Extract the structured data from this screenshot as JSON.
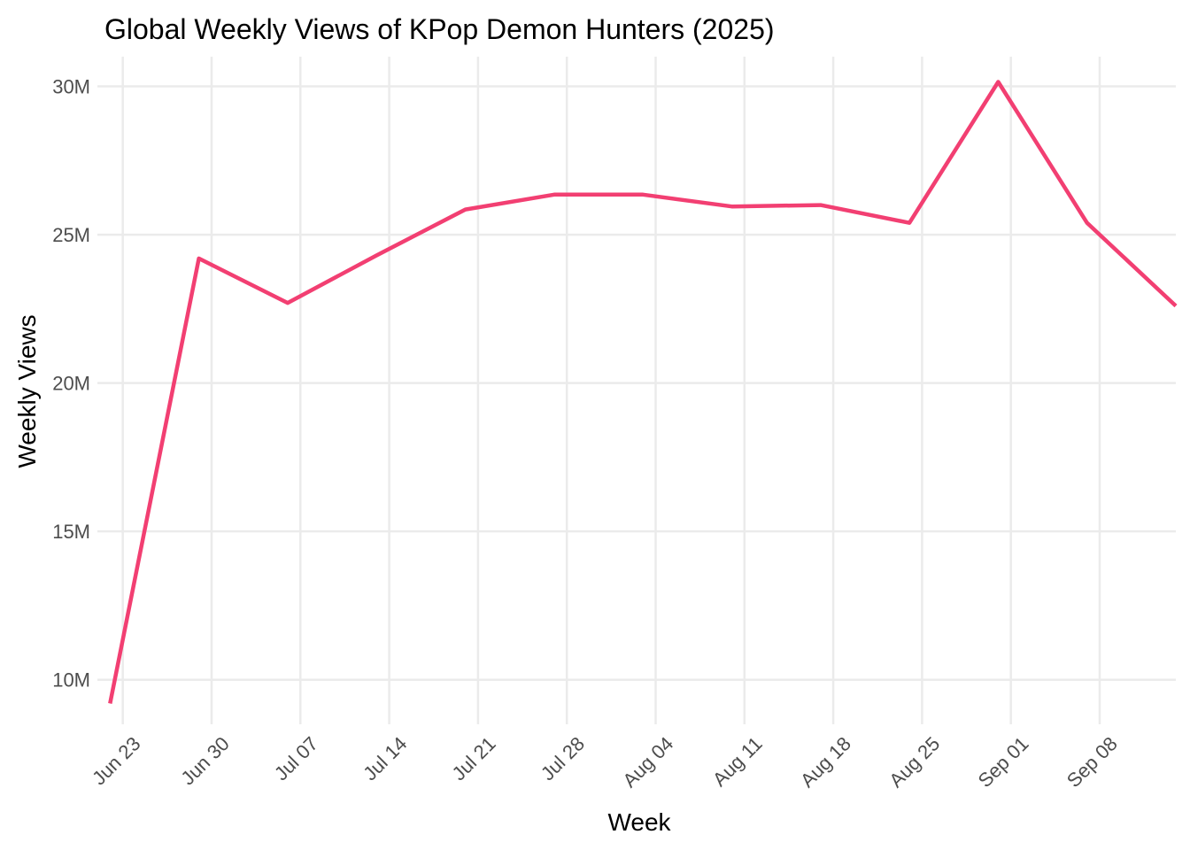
{
  "chart_data": {
    "type": "line",
    "title": "Global Weekly Views of KPop Demon Hunters (2025)",
    "xlabel": "Week",
    "ylabel": "Weekly Views",
    "x_ticks": [
      "Jun 23",
      "Jun 30",
      "Jul 07",
      "Jul 14",
      "Jul 21",
      "Jul 28",
      "Aug 04",
      "Aug 11",
      "Aug 18",
      "Aug 25",
      "Sep 01",
      "Sep 08"
    ],
    "x_ticks_dates": [
      "2025-06-23",
      "2025-06-30",
      "2025-07-07",
      "2025-07-14",
      "2025-07-21",
      "2025-07-28",
      "2025-08-04",
      "2025-08-11",
      "2025-08-18",
      "2025-08-25",
      "2025-09-01",
      "2025-09-08"
    ],
    "y_ticks": [
      10000000,
      15000000,
      20000000,
      25000000,
      30000000
    ],
    "y_tick_labels": [
      "10M",
      "15M",
      "20M",
      "25M",
      "30M"
    ],
    "xlim": [
      "2025-06-21",
      "2025-09-14"
    ],
    "ylim": [
      8500000,
      31000000
    ],
    "grid": true,
    "legend": "none",
    "series": [
      {
        "color": "#f23f72",
        "points": [
          {
            "x": "2025-06-22",
            "y": 9200000
          },
          {
            "x": "2025-06-29",
            "y": 24200000
          },
          {
            "x": "2025-07-06",
            "y": 22700000
          },
          {
            "x": "2025-07-13",
            "y": 24300000
          },
          {
            "x": "2025-07-20",
            "y": 25850000
          },
          {
            "x": "2025-07-27",
            "y": 26350000
          },
          {
            "x": "2025-08-03",
            "y": 26350000
          },
          {
            "x": "2025-08-10",
            "y": 25950000
          },
          {
            "x": "2025-08-17",
            "y": 26000000
          },
          {
            "x": "2025-08-24",
            "y": 25400000
          },
          {
            "x": "2025-08-31",
            "y": 30150000
          },
          {
            "x": "2025-09-07",
            "y": 25400000
          },
          {
            "x": "2025-09-14",
            "y": 22600000
          }
        ]
      }
    ]
  }
}
